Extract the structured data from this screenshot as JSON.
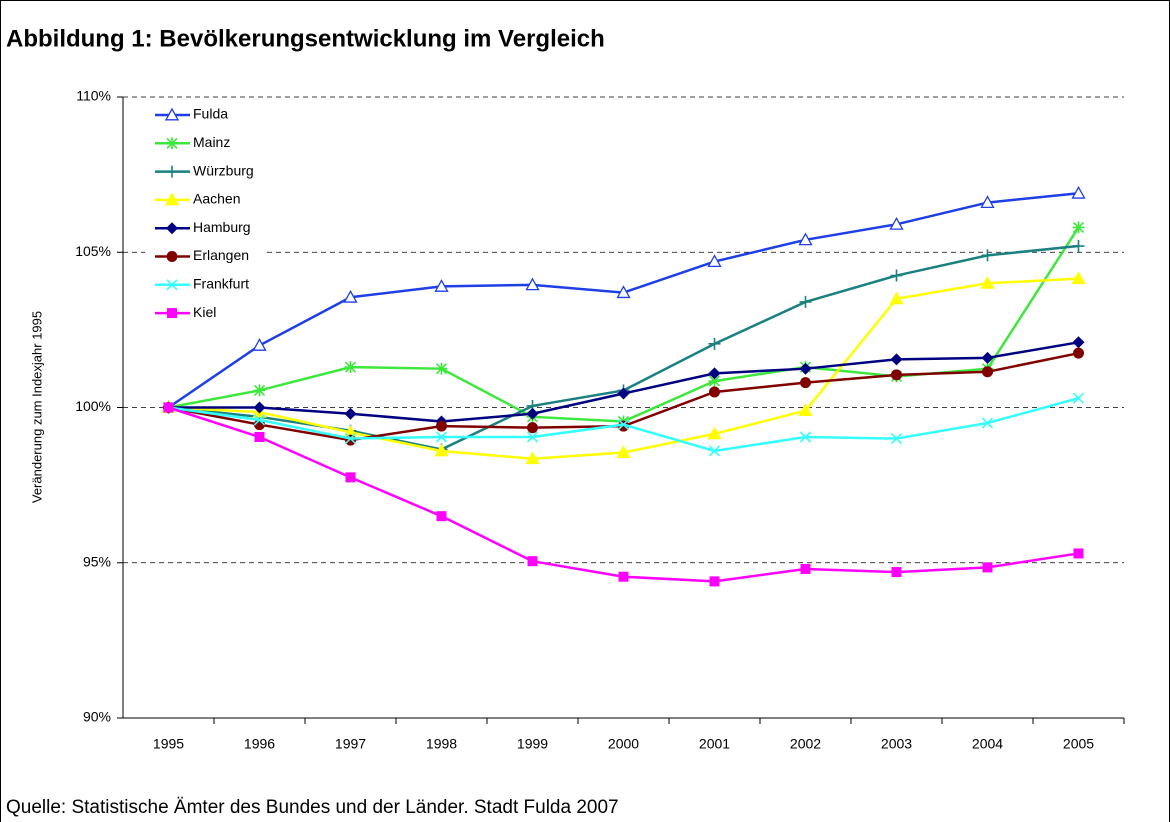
{
  "chart_data": {
    "type": "line",
    "title": "Abbildung 1: Bevölkerungsentwicklung im Vergleich",
    "y_label": "Veränderung zum Indexjahr 1995",
    "source": "Quelle: Statistische Ämter des Bundes und der Länder. Stadt Fulda 2007",
    "categories": [
      "1995",
      "1996",
      "1997",
      "1998",
      "1999",
      "2000",
      "2001",
      "2002",
      "2003",
      "2004",
      "2005"
    ],
    "ylim": [
      90,
      110
    ],
    "yticks": [
      {
        "value": 90,
        "label": "90%"
      },
      {
        "value": 95,
        "label": "95%"
      },
      {
        "value": 100,
        "label": "100%"
      },
      {
        "value": 105,
        "label": "105%"
      },
      {
        "value": 110,
        "label": "110%"
      }
    ],
    "grid": true,
    "legend": "upper left",
    "series": [
      {
        "name": "Fulda",
        "color": "#1f3fe6",
        "marker": "triangle-open",
        "values": [
          100,
          102.0,
          103.55,
          103.9,
          103.95,
          103.7,
          104.7,
          105.4,
          105.9,
          106.6,
          106.9
        ]
      },
      {
        "name": "Mainz",
        "color": "#3de83d",
        "marker": "asterisk",
        "values": [
          100,
          100.55,
          101.3,
          101.25,
          99.7,
          99.55,
          100.85,
          101.3,
          101.0,
          101.25,
          105.8
        ]
      },
      {
        "name": "Würzburg",
        "color": "#1a8080",
        "marker": "plus",
        "values": [
          100,
          99.7,
          99.25,
          98.65,
          100.05,
          100.55,
          102.05,
          103.4,
          104.25,
          104.9,
          105.2
        ]
      },
      {
        "name": "Aachen",
        "color": "#ffff00",
        "marker": "triangle",
        "values": [
          100,
          99.85,
          99.2,
          98.6,
          98.35,
          98.55,
          99.15,
          99.9,
          103.5,
          104.0,
          104.15
        ]
      },
      {
        "name": "Hamburg",
        "color": "#000080",
        "marker": "diamond",
        "values": [
          100,
          100.0,
          99.8,
          99.55,
          99.8,
          100.45,
          101.1,
          101.25,
          101.55,
          101.6,
          102.1
        ]
      },
      {
        "name": "Erlangen",
        "color": "#800000",
        "marker": "circle",
        "values": [
          100,
          99.45,
          98.95,
          99.4,
          99.35,
          99.4,
          100.5,
          100.8,
          101.05,
          101.15,
          101.75
        ]
      },
      {
        "name": "Frankfurt",
        "color": "#33ffff",
        "marker": "x",
        "values": [
          100,
          99.6,
          99.0,
          99.05,
          99.05,
          99.45,
          98.6,
          99.05,
          99.0,
          99.5,
          100.3
        ]
      },
      {
        "name": "Kiel",
        "color": "#ff00ff",
        "marker": "square",
        "values": [
          100,
          99.05,
          97.75,
          96.5,
          95.05,
          94.55,
          94.4,
          94.8,
          94.7,
          94.85,
          95.3
        ]
      }
    ]
  }
}
